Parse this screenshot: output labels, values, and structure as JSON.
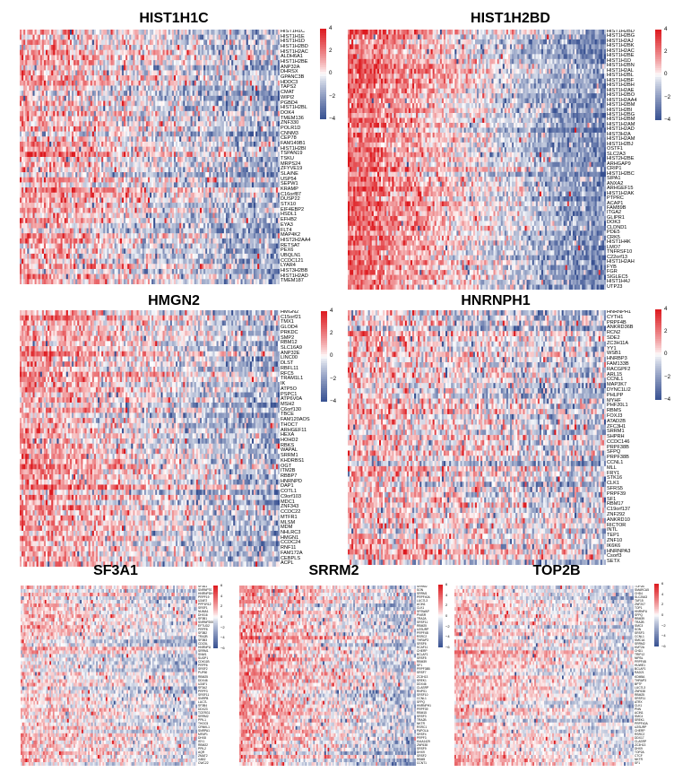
{
  "chart_data": [
    {
      "type": "heatmap",
      "title": "HIST1H1C",
      "rows": [
        "HIST1H1C",
        "HIST1H1E",
        "HIST1H1D",
        "HIST1H2BD",
        "HIST1H2AC",
        "ALDH6A1",
        "HIST1H2BE",
        "ANP32A",
        "DHRSX",
        "GPANC3B",
        "HDDC3",
        "TAPS2",
        "CMAT",
        "WIPI2",
        "PGBD4",
        "HIST1H2BL",
        "DOK4",
        "TMEM136",
        "ZNF330",
        "POLR1D",
        "CNNM3",
        "CEP78",
        "FAM149B1",
        "HIST1H2BI",
        "TSPAN19",
        "TSKU",
        "MRPS24",
        "ZFYVE19",
        "SLA/NE",
        "USP54",
        "SEPW1",
        "KRAMP",
        "C16orf87",
        "DUSP22",
        "STX10",
        "EIF4EBP2",
        "HSDL1",
        "EFHB2",
        "EYA3",
        "FLT4",
        "MAP4K2",
        "HIST2H2AA4",
        "RETSAT",
        "PEX6",
        "UBQLN1",
        "CCDC121",
        "LYAR4",
        "HIST3H2BB",
        "HIST1H2AD",
        "TMEM187"
      ],
      "legend_ticks": [
        "4",
        "2",
        "0",
        "−2",
        "−4"
      ],
      "value_range": [
        -4,
        4
      ]
    },
    {
      "type": "heatmap",
      "title": "HIST1H2BD",
      "rows": [
        "HIST1H2BD",
        "HIST1H2BG",
        "HIST1H2AJ",
        "HIST1H2BK",
        "HIST1H2AC",
        "HIST1H2BE",
        "HIST1H1D",
        "HIST1H2BN",
        "HIST1H2AL",
        "HIST1H2BL",
        "HIST1H2BF",
        "HIST1H2BH",
        "HIST1H2AE",
        "HIST1H2BO",
        "HIST1H2AA4",
        "HIST1H2BM",
        "HIST1H2BI",
        "HIST1H2BG",
        "HIST1H2BM",
        "HIST1H2AM",
        "HIST1H2AD",
        "HIST3H2A",
        "HIST1H2AM",
        "HIST1H2BJ",
        "OSTF1",
        "SLC2A3",
        "HIST2H2BE",
        "ARHGAP9",
        "CRIP1",
        "HIST1H2BC",
        "SIPA1",
        "ANXA2",
        "ARHGEF15",
        "HIST1H2AK",
        "PTPRC",
        "ACAP1",
        "FAM89B",
        "ITGA2",
        "GLIPR1",
        "DOK3",
        "CLDND1",
        "PDE5",
        "CRK5",
        "HIST1H4K",
        "LMO7",
        "TNFRSF10",
        "C22orf13",
        "HIST1H2AH",
        "FYB",
        "FGR",
        "SIGLEC5",
        "HIST1H4J",
        "UTP23"
      ],
      "legend_ticks": [
        "4",
        "2",
        "0",
        "−2",
        "−4"
      ],
      "value_range": [
        -4,
        4
      ]
    },
    {
      "type": "heatmap",
      "title": "HMGN2",
      "rows": [
        "HMGN2",
        "C15orf21",
        "TMX1",
        "GLOD4",
        "PRKDC",
        "SMP2",
        "RBM12",
        "SLC16A9",
        "ANP32E",
        "LINC00",
        "DLST",
        "RBFL11",
        "RFC5",
        "TRAM1L1",
        "IK",
        "ATP5O",
        "PSPC1",
        "ATP6V0A",
        "MSH2",
        "C6orf130",
        "TBCE",
        "FAM120AOS",
        "THOC7",
        "ARHGEF11",
        "HEXA",
        "HOHD2",
        "RBKS",
        "WAPAL",
        "SRRM1",
        "KHDRBS1",
        "OGT",
        "ITM2B",
        "RBBP7",
        "HNRNPD",
        "DAP1",
        "COTL1",
        "C9orf103",
        "MDC1",
        "ZNF343",
        "CCDC22",
        "MTFR1",
        "MLSM",
        "MDM",
        "NHLRC3",
        "HMGN1",
        "CCDC24",
        "RNF11",
        "FAM172A",
        "CEBPLS",
        "ACPL"
      ],
      "legend_ticks": [
        "4",
        "2",
        "0",
        "−2",
        "−4"
      ],
      "value_range": [
        -4,
        4
      ]
    },
    {
      "type": "heatmap",
      "title": "HNRNPH1",
      "rows": [
        "HNRNPH1",
        "CYTH1",
        "PRPF4B",
        "ANKRD36B",
        "RCN2",
        "SDE2",
        "ZC3H11A",
        "YY1",
        "WSB1",
        "HNRBP3",
        "FAM133B",
        "RACGPF2",
        "ARL15",
        "CCNL1",
        "MAP3K7",
        "DYNC1LI2",
        "PHLPP",
        "MYHF",
        "PHF20L1",
        "RBMS",
        "FOXJ3",
        "ATAD2B",
        "ZFC3H1",
        "SRRM1",
        "SHPRH",
        "CCDC146",
        "PRPF38B",
        "SFPQ",
        "PRPF38B",
        "CCNL1",
        "MLL",
        "FRY1",
        "STK16",
        "CLK1",
        "SFRS5",
        "PRPF39",
        "SF1",
        "RBM17",
        "C19orf137",
        "ZNF292",
        "ANKRD10",
        "RICTOR",
        "INTL",
        "TEP1",
        "ZNF10",
        "IK6K6",
        "HNRNPA3",
        "Csorf3",
        "SETX"
      ],
      "legend_ticks": [
        "4",
        "2",
        "0",
        "−2",
        "−4"
      ],
      "value_range": [
        -4,
        4
      ]
    },
    {
      "type": "heatmap",
      "title": "SF3A1",
      "rows": [
        "SF3A1",
        "SNRNP70",
        "HNRNPDH",
        "PRPF19",
        "U2AF2",
        "PPP1R12",
        "SRSF1",
        "NUMA1",
        "DHX16",
        "SF3B1",
        "SNRNP200",
        "EFTUD2",
        "PRPF8",
        "SF3B2",
        "TRA2B",
        "SF3B3",
        "CDC5L",
        "HNRNPU",
        "SRRM1",
        "SNW1",
        "SUGP1",
        "CDK11B",
        "PRPF6",
        "SRSF2",
        "PUF60",
        "RBM25",
        "DDX46",
        "U2AF1",
        "SF3A2",
        "PRPF3",
        "SRSF11",
        "SNRPB",
        "LUC7L",
        "SF3B4",
        "DDX23",
        "TCERG1",
        "SRRM2",
        "PPIL1",
        "THOC5",
        "CRNKL1",
        "SNRPA1",
        "MFAP1",
        "DHX8",
        "ISY1",
        "RBM22",
        "PPIL2",
        "AQR",
        "ZMAT2",
        "XAB2",
        "CWC22"
      ],
      "legend_ticks": [
        "6",
        "4",
        "2",
        "0",
        "−2",
        "−4",
        "−6"
      ],
      "value_range": [
        -6,
        6
      ]
    },
    {
      "type": "heatmap",
      "title": "SRRM2",
      "rows": [
        "SRRM2",
        "SON",
        "SRRM1",
        "PRPF40A",
        "LUC7L3",
        "ACIN1",
        "CLK1",
        "SFSWAP",
        "PNISR",
        "TRA2A",
        "SRSF11",
        "RBM25",
        "U2SURP",
        "PRPF4B",
        "RSRC2",
        "THRAP3",
        "SRSF6",
        "SCAF11",
        "CHERP",
        "BCLAF1",
        "SRSF5",
        "RBM39",
        "SF1",
        "PRPF38B",
        "SRSF7",
        "ZC3H13",
        "SREK1",
        "DDX46",
        "CLASRP",
        "RNPS1",
        "SRSF10",
        "CCNL1",
        "SFPQ",
        "HNRNPH1",
        "PRPF39",
        "RBM15",
        "SRSF3",
        "TRA2B",
        "NKTR",
        "RSRC1",
        "PAPOLA",
        "SRSF4",
        "PRPF3",
        "KIAA1429",
        "ZNF638",
        "SRSF9",
        "DHX9",
        "SRSF2",
        "RBM5",
        "CCNT1"
      ],
      "legend_ticks": [
        "6",
        "4",
        "2",
        "0",
        "−2",
        "−4",
        "−6"
      ],
      "value_range": [
        -6,
        6
      ]
    },
    {
      "type": "heatmap",
      "title": "TOP2B",
      "rows": [
        "TOP2B",
        "SMARCA5",
        "CHD4",
        "SLC25A3",
        "TAF15",
        "ZNF207",
        "TOP1",
        "HNRNPU",
        "SFPQ",
        "RBM39",
        "TRA2B",
        "SMC3",
        "SON",
        "SRSF3",
        "CCNL1",
        "SMC1A",
        "SRRM2",
        "KMT2A",
        "CHD1",
        "TRIP12",
        "NIPBL",
        "PRPF4B",
        "HUWE1",
        "BCLAF1",
        "RAD21",
        "KDM5A",
        "THRAP3",
        "BPTF",
        "LUC7L3",
        "ZNF638",
        "RBM25",
        "SRSF11",
        "ATRX",
        "CLK1",
        "PNN",
        "ACIN1",
        "SMC4",
        "SREK1",
        "PRPF40A",
        "U2SURP",
        "CHERP",
        "RSRC2",
        "DDX17",
        "CLASRP",
        "ZC3H13",
        "DHX9",
        "TOP2A",
        "CTCF",
        "NKTR",
        "SF1"
      ],
      "legend_ticks": [
        "6",
        "4",
        "2",
        "0",
        "−2",
        "−4",
        "−6"
      ],
      "value_range": [
        -6,
        6
      ]
    }
  ]
}
